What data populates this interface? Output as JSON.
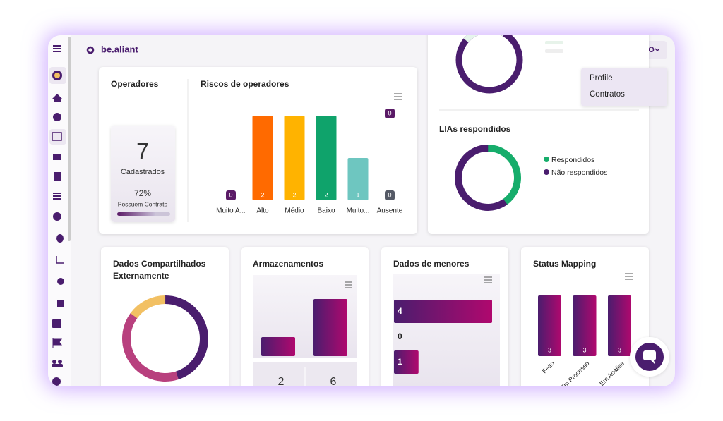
{
  "header": {
    "logo": "be.aliant",
    "user": "CYRO",
    "menu": [
      "Profile",
      "Contratos"
    ]
  },
  "operadores": {
    "title": "Operadores",
    "count": 7,
    "count_label": "Cadastrados",
    "contract_pct": 72,
    "contract_pct_label": "72%",
    "contract_label": "Possuem Contrato"
  },
  "riscos": {
    "title": "Riscos de operadores",
    "categories": [
      "Muito A...",
      "Alto",
      "Médio",
      "Baixo",
      "Muito...",
      "Ausente"
    ],
    "values": [
      0,
      2,
      2,
      2,
      1,
      0
    ],
    "colors": [
      "#5a1a66",
      "#ff6a00",
      "#ffb300",
      "#0fa36b",
      "#6ec6c0",
      "#555a66"
    ],
    "badge": 0
  },
  "lias": {
    "title": "LIAs respondidos",
    "series": [
      {
        "name": "Respondidos",
        "color": "#16ad6b",
        "value": 40
      },
      {
        "name": "Não respondidos",
        "color": "#4a1d6e",
        "value": 60
      }
    ]
  },
  "compartilhados": {
    "title_lines": [
      "Dados Compartilhados",
      "Externamente"
    ],
    "values": [
      45,
      40,
      15
    ],
    "colors": [
      "#4a1d6e",
      "#b8407e",
      "#f2c063"
    ]
  },
  "armazenamentos": {
    "title": "Armazenamentos",
    "values": [
      2,
      6
    ]
  },
  "menores": {
    "title": "Dados de menores",
    "values": [
      4,
      0,
      1
    ]
  },
  "status": {
    "title": "Status Mapping",
    "categories": [
      "Feito",
      "Em Processo",
      "Em Análise"
    ],
    "values": [
      3,
      3,
      3
    ]
  }
}
